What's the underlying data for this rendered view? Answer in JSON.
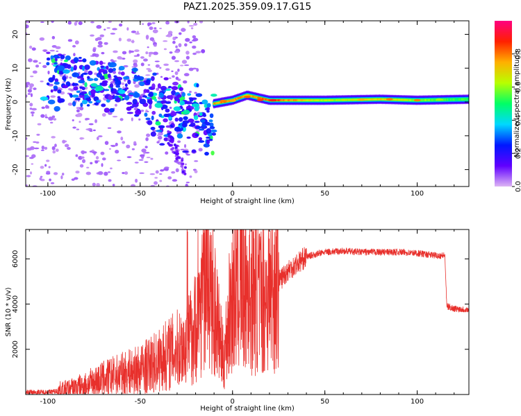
{
  "title": "PAZ1.2025.359.09.17.G15",
  "chart_data": [
    {
      "type": "heatmap",
      "xlabel": "Height of straight line (km)",
      "ylabel": "Frequency (Hz)",
      "xlim": [
        -112,
        128
      ],
      "ylim": [
        -25,
        24
      ],
      "xticks": [
        -100,
        -50,
        0,
        50,
        100
      ],
      "yticks": [
        -20,
        -10,
        0,
        10,
        20
      ],
      "colorbar": {
        "label": "Normalized spectral amplitude",
        "range": [
          0.0,
          1.0
        ],
        "ticks": [
          "0.0",
          "0.2",
          "0.4",
          "0.6",
          "0.8"
        ],
        "colors": [
          "#ddb4f4",
          "#6000ff",
          "#0018ff",
          "#00d8ff",
          "#00ff66",
          "#b8ff00",
          "#ffb000",
          "#ff2000",
          "#ff0080"
        ]
      },
      "ridge": [
        {
          "x": -10,
          "f": -0.5,
          "amp": 0.75
        },
        {
          "x": 0,
          "f": 0.5,
          "amp": 0.8
        },
        {
          "x": 8,
          "f": 2.0,
          "amp": 0.7
        },
        {
          "x": 20,
          "f": 0.5,
          "amp": 0.85
        },
        {
          "x": 50,
          "f": 0.5,
          "amp": 0.6
        },
        {
          "x": 80,
          "f": 0.8,
          "amp": 0.7
        },
        {
          "x": 100,
          "f": 0.5,
          "amp": 0.6
        },
        {
          "x": 128,
          "f": 0.8,
          "amp": 0.5
        }
      ]
    },
    {
      "type": "line",
      "xlabel": "Height of straight line (km)",
      "ylabel": "SNR (10 * v/v)",
      "xlim": [
        -112,
        128
      ],
      "ylim": [
        0,
        7300
      ],
      "xticks": [
        -100,
        -50,
        0,
        50,
        100
      ],
      "yticks": [
        2000,
        4000,
        6000
      ],
      "series": [
        {
          "name": "SNR",
          "color": "#e8302c",
          "x": [
            -112,
            -100,
            -90,
            -80,
            -70,
            -60,
            -50,
            -40,
            -35,
            -30,
            -25,
            -20,
            -15,
            -10,
            -5,
            0,
            5,
            10,
            15,
            20,
            25,
            30,
            40,
            50,
            60,
            70,
            80,
            90,
            100,
            110,
            115,
            116,
            120,
            128
          ],
          "y": [
            100,
            100,
            200,
            400,
            700,
            900,
            1100,
            1500,
            1800,
            2000,
            2200,
            3000,
            5000,
            4000,
            1500,
            4500,
            5000,
            4500,
            4300,
            4500,
            5000,
            5500,
            6100,
            6300,
            6350,
            6300,
            6300,
            6300,
            6250,
            6150,
            6150,
            3900,
            3800,
            3750
          ]
        }
      ]
    }
  ]
}
